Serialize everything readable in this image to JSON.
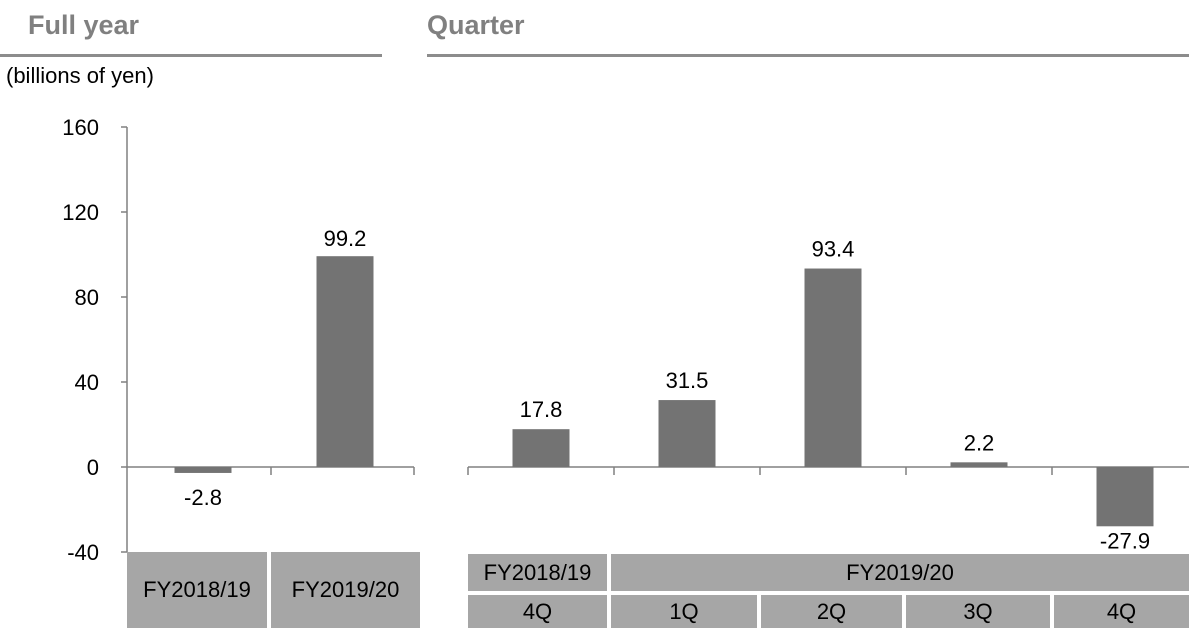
{
  "headings": {
    "full_year": "Full year",
    "quarter": "Quarter"
  },
  "unit_label": "(billions of yen)",
  "colors": {
    "bar": "#737373",
    "category_box": "#a6a6a6",
    "heading": "#808080",
    "rule": "#8c8c8c"
  },
  "chart_data": [
    {
      "type": "bar",
      "title": "Full year",
      "ylabel": "(billions of yen)",
      "ylim": [
        -40,
        160
      ],
      "yticks": [
        "160",
        "120",
        "80",
        "40",
        "0",
        "-40"
      ],
      "categories": [
        "FY2018/19",
        "FY2019/20"
      ],
      "values": [
        -2.8,
        99.2
      ],
      "data_labels": [
        "-2.8",
        "99.2"
      ]
    },
    {
      "type": "bar",
      "title": "Quarter",
      "ylim": [
        -40,
        160
      ],
      "categories": [
        "4Q",
        "1Q",
        "2Q",
        "3Q",
        "4Q"
      ],
      "fiscal_years": [
        "FY2018/19",
        "FY2019/20"
      ],
      "values": [
        17.8,
        31.5,
        93.4,
        2.2,
        -27.9
      ],
      "data_labels": [
        "17.8",
        "31.5",
        "93.4",
        "2.2",
        "-27.9"
      ]
    }
  ]
}
